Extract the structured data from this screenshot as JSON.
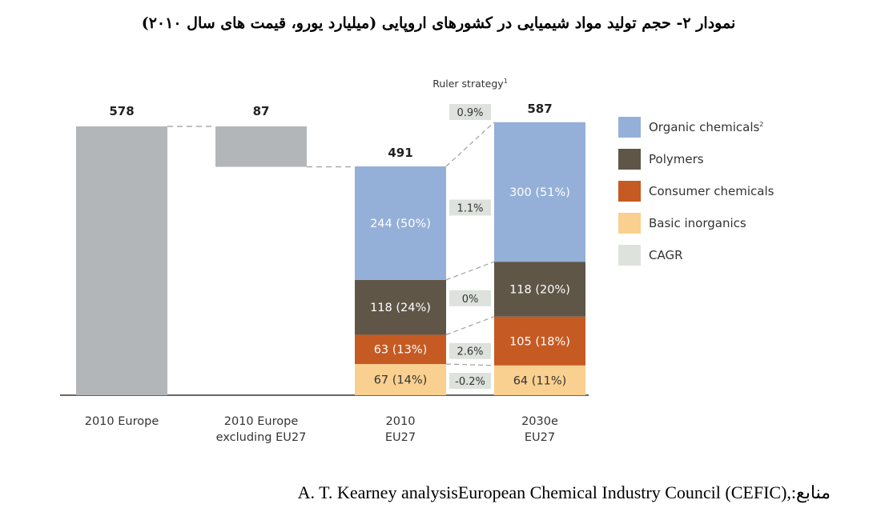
{
  "title": "نمودار ۲- حجم تولید مواد شیمیایی در کشورهای اروپایی (میلیارد یورو، قیمت های سال ۲۰۱۰)",
  "source": {
    "label": "منابع:",
    "text": "A. T. Kearney analysisEuropean Chemical Industry Council (CEFIC),"
  },
  "chart_data": {
    "type": "bar",
    "subtype": "stacked-waterfall",
    "categories": [
      "2010 Europe",
      "2010 Europe excluding EU27",
      "2010 EU27",
      "2030e EU27"
    ],
    "category_lines": [
      [
        "2010 Europe"
      ],
      [
        "2010 Europe",
        "excluding EU27"
      ],
      [
        "2010",
        "EU27"
      ],
      [
        "2030e",
        "EU27"
      ]
    ],
    "totals": [
      578,
      87,
      491,
      587
    ],
    "waterfall": {
      "europe_total": 578,
      "excluded": 87
    },
    "series": [
      {
        "name": "Organic chemicals",
        "superscript": "2",
        "color": "#94b0d8",
        "values": [
          null,
          null,
          244,
          300
        ],
        "labels": [
          null,
          null,
          "244 (50%)",
          "300 (51%)"
        ]
      },
      {
        "name": "Polymers",
        "color": "#5f5648",
        "values": [
          null,
          null,
          118,
          118
        ],
        "labels": [
          null,
          null,
          "118 (24%)",
          "118 (20%)"
        ]
      },
      {
        "name": "Consumer chemicals",
        "color": "#c65a23",
        "values": [
          null,
          null,
          63,
          105
        ],
        "labels": [
          null,
          null,
          "63 (13%)",
          "105 (18%)"
        ]
      },
      {
        "name": "Basic inorganics",
        "color": "#f9d08f",
        "values": [
          null,
          null,
          67,
          64
        ],
        "labels": [
          null,
          null,
          "67 (14%)",
          "64 (11%)"
        ]
      }
    ],
    "gray_color": "#b3b6b8",
    "cagr": {
      "name": "CAGR",
      "color": "#dde3dc",
      "total": "0.9%",
      "by_series": {
        "Organic chemicals": "1.1%",
        "Polymers": "0%",
        "Consumer chemicals": "2.6%",
        "Basic inorganics": "-0.2%"
      }
    },
    "annotation": {
      "text": "Ruler strategy",
      "superscript": "1"
    },
    "legend_position": "right",
    "ylim": [
      0,
      600
    ],
    "grid": false,
    "xlabel": "",
    "ylabel": ""
  }
}
